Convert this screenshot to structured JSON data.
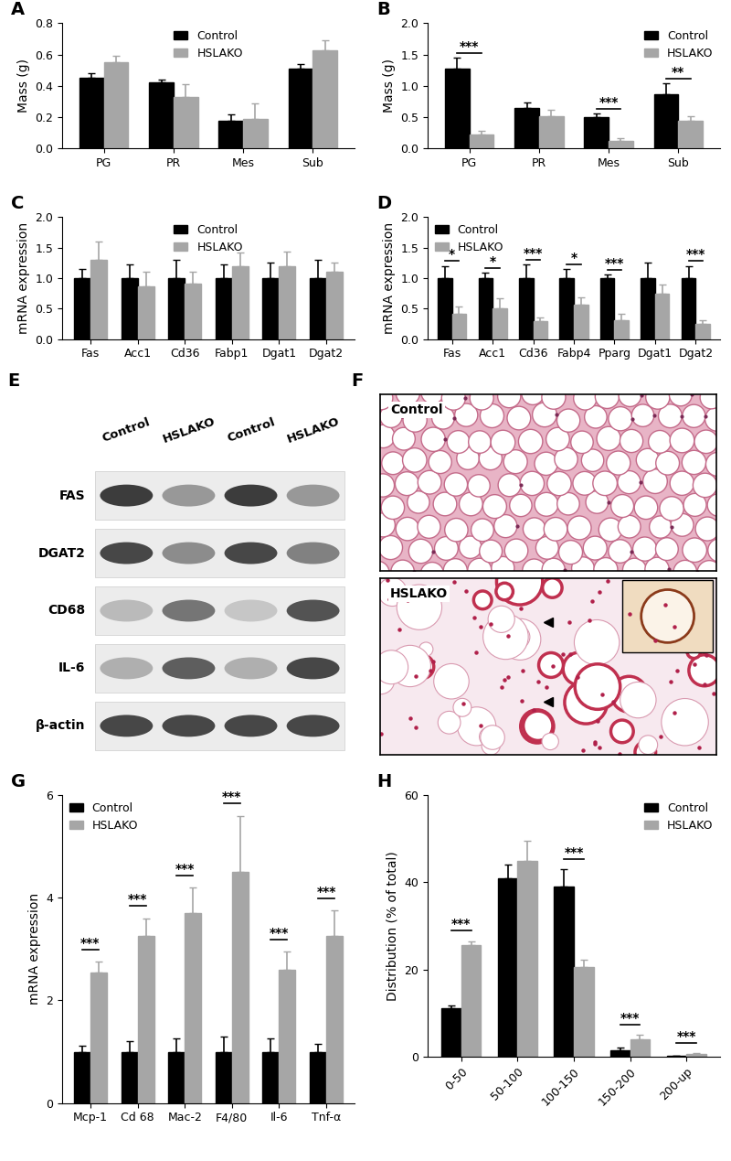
{
  "chart_data": [
    {
      "type": "bar",
      "title": "A",
      "ylabel": "Mass (g)",
      "categories": [
        "PG",
        "PR",
        "Mes",
        "Sub"
      ],
      "ylim": [
        0,
        0.8
      ],
      "yticks": [
        {
          "value": 0,
          "label": "0.0"
        },
        {
          "value": 0.2,
          "label": "0.2"
        },
        {
          "value": 0.4,
          "label": "0.4"
        },
        {
          "value": 0.6,
          "label": "0.6"
        },
        {
          "value": 0.8,
          "label": "0.8"
        }
      ],
      "legend": "upper center",
      "series": [
        {
          "name": "Control",
          "color": "#000000",
          "values": [
            0.45,
            0.42,
            0.18,
            0.51
          ],
          "errors": [
            0.03,
            0.02,
            0.04,
            0.03
          ]
        },
        {
          "name": "HSLAKO",
          "color": "#a6a6a6",
          "values": [
            0.55,
            0.33,
            0.19,
            0.63
          ],
          "errors": [
            0.04,
            0.08,
            0.1,
            0.06
          ]
        }
      ],
      "annotations": []
    },
    {
      "type": "bar",
      "title": "B",
      "ylabel": "Mass (g)",
      "categories": [
        "PG",
        "PR",
        "Mes",
        "Sub"
      ],
      "ylim": [
        0,
        2.0
      ],
      "yticks": [
        {
          "value": 0,
          "label": "0.0"
        },
        {
          "value": 0.5,
          "label": "0.5"
        },
        {
          "value": 1.0,
          "label": "1.0"
        },
        {
          "value": 1.5,
          "label": "1.5"
        },
        {
          "value": 2.0,
          "label": "2.0"
        }
      ],
      "legend": "upper right",
      "series": [
        {
          "name": "Control",
          "color": "#000000",
          "values": [
            1.28,
            0.65,
            0.5,
            0.87
          ],
          "errors": [
            0.17,
            0.08,
            0.06,
            0.17
          ]
        },
        {
          "name": "HSLAKO",
          "color": "#a6a6a6",
          "values": [
            0.23,
            0.51,
            0.13,
            0.44
          ],
          "errors": [
            0.05,
            0.11,
            0.04,
            0.08
          ]
        }
      ],
      "annotations": [
        {
          "category": "PG",
          "text": "***"
        },
        {
          "category": "Mes",
          "text": "***"
        },
        {
          "category": "Sub",
          "text": "**"
        }
      ]
    },
    {
      "type": "bar",
      "title": "C",
      "ylabel": "mRNA expression",
      "categories": [
        "Fas",
        "Acc1",
        "Cd36",
        "Fabp1",
        "Dgat1",
        "Dgat2"
      ],
      "ylim": [
        0,
        2.0
      ],
      "yticks": [
        {
          "value": 0,
          "label": "0.0"
        },
        {
          "value": 0.5,
          "label": "0.5"
        },
        {
          "value": 1.0,
          "label": "1.0"
        },
        {
          "value": 1.5,
          "label": "1.5"
        },
        {
          "value": 2.0,
          "label": "2.0"
        }
      ],
      "legend": "upper center",
      "series": [
        {
          "name": "Control",
          "color": "#000000",
          "values": [
            1.0,
            1.0,
            1.0,
            1.0,
            1.0,
            1.0
          ],
          "errors": [
            0.15,
            0.23,
            0.3,
            0.23,
            0.25,
            0.3
          ]
        },
        {
          "name": "HSLAKO",
          "color": "#a6a6a6",
          "values": [
            1.3,
            0.86,
            0.91,
            1.2,
            1.2,
            1.1
          ],
          "errors": [
            0.3,
            0.24,
            0.19,
            0.22,
            0.24,
            0.15
          ]
        }
      ],
      "annotations": []
    },
    {
      "type": "bar",
      "title": "D",
      "ylabel": "mRNA expression",
      "categories": [
        "Fas",
        "Acc1",
        "Cd36",
        "Fabp4",
        "Pparg",
        "Dgat1",
        "Dgat2"
      ],
      "ylim": [
        0,
        2.0
      ],
      "yticks": [
        {
          "value": 0,
          "label": "0.0"
        },
        {
          "value": 0.5,
          "label": "0.5"
        },
        {
          "value": 1.0,
          "label": "1.0"
        },
        {
          "value": 1.5,
          "label": "1.5"
        },
        {
          "value": 2.0,
          "label": "2.0"
        }
      ],
      "legend": "upper left",
      "series": [
        {
          "name": "Control",
          "color": "#000000",
          "values": [
            1.0,
            1.0,
            1.0,
            1.0,
            1.0,
            1.0,
            1.0
          ],
          "errors": [
            0.2,
            0.09,
            0.22,
            0.15,
            0.06,
            0.26,
            0.2
          ]
        },
        {
          "name": "HSLAKO",
          "color": "#a6a6a6",
          "values": [
            0.41,
            0.5,
            0.3,
            0.56,
            0.31,
            0.74,
            0.25
          ],
          "errors": [
            0.12,
            0.17,
            0.06,
            0.12,
            0.1,
            0.16,
            0.06
          ]
        }
      ],
      "annotations": [
        {
          "category": "Fas",
          "text": "*"
        },
        {
          "category": "Acc1",
          "text": "*"
        },
        {
          "category": "Cd36",
          "text": "***"
        },
        {
          "category": "Fabp4",
          "text": "*"
        },
        {
          "category": "Pparg",
          "text": "***"
        },
        {
          "category": "Dgat2",
          "text": "***"
        }
      ]
    },
    {
      "type": "bar",
      "title": "G",
      "ylabel": "mRNA expression",
      "categories": [
        "Mcp-1",
        "Cd 68",
        "Mac-2",
        "F4/80",
        "Il-6",
        "Tnf-α"
      ],
      "ylim": [
        0,
        6
      ],
      "yticks": [
        0,
        2,
        4,
        6
      ],
      "legend": "upper left",
      "series": [
        {
          "name": "Control",
          "color": "#000000",
          "values": [
            1.0,
            1.0,
            1.0,
            1.0,
            1.0,
            1.0
          ],
          "errors": [
            0.12,
            0.2,
            0.25,
            0.3,
            0.25,
            0.15
          ]
        },
        {
          "name": "HSLAKO",
          "color": "#a6a6a6",
          "values": [
            2.55,
            3.25,
            3.7,
            4.5,
            2.6,
            3.25
          ],
          "errors": [
            0.2,
            0.35,
            0.5,
            1.1,
            0.35,
            0.5
          ]
        }
      ],
      "annotations": [
        {
          "category": "Mcp-1",
          "text": "***"
        },
        {
          "category": "Cd 68",
          "text": "***"
        },
        {
          "category": "Mac-2",
          "text": "***"
        },
        {
          "category": "F4/80",
          "text": "***"
        },
        {
          "category": "Il-6",
          "text": "***"
        },
        {
          "category": "Tnf-α",
          "text": "***"
        }
      ]
    },
    {
      "type": "bar",
      "title": "H",
      "ylabel": "Distribution (% of total)",
      "categories": [
        "0-50",
        "50-100",
        "100-150",
        "150-200",
        "200-up"
      ],
      "ylim": [
        0,
        60
      ],
      "yticks": [
        0,
        20,
        40,
        60
      ],
      "legend": "upper right",
      "series": [
        {
          "name": "Control",
          "color": "#000000",
          "values": [
            11,
            41,
            39,
            1.5,
            0.1
          ],
          "errors": [
            0.8,
            3,
            4,
            0.5,
            0.1
          ]
        },
        {
          "name": "HSLAKO",
          "color": "#a6a6a6",
          "values": [
            25.5,
            45,
            20.5,
            4,
            0.5
          ],
          "errors": [
            1,
            4.5,
            1.8,
            1,
            0.3
          ]
        }
      ],
      "annotations": [
        {
          "category": "0-50",
          "text": "***"
        },
        {
          "category": "100-150",
          "text": "***"
        },
        {
          "category": "150-200",
          "text": "***"
        },
        {
          "category": "200-up",
          "text": "***"
        }
      ]
    }
  ],
  "blot": {
    "title": "E",
    "columns": [
      "Control",
      "HSLAKO",
      "Control",
      "HSLAKO"
    ],
    "rows": [
      {
        "label": "FAS",
        "intensity": [
          0.85,
          0.45,
          0.85,
          0.45
        ]
      },
      {
        "label": "DGAT2",
        "intensity": [
          0.8,
          0.5,
          0.8,
          0.55
        ]
      },
      {
        "label": "CD68",
        "intensity": [
          0.3,
          0.6,
          0.25,
          0.75
        ]
      },
      {
        "label": "IL-6",
        "intensity": [
          0.35,
          0.7,
          0.35,
          0.8
        ]
      },
      {
        "label": "β-actin",
        "intensity": [
          0.8,
          0.8,
          0.8,
          0.8
        ]
      }
    ]
  },
  "histology": {
    "title": "F",
    "panels": [
      {
        "label": "Control"
      },
      {
        "label": "HSLAKO"
      }
    ]
  }
}
